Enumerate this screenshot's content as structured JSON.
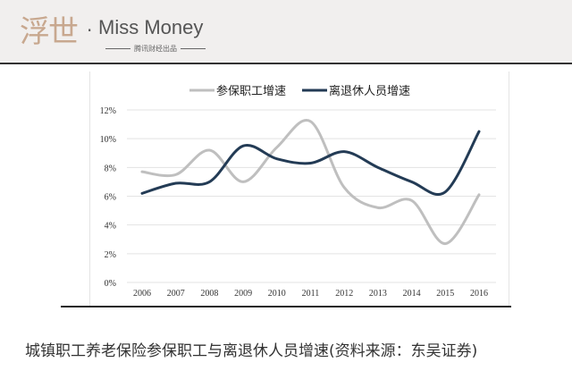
{
  "header": {
    "logo_cn": "浮世",
    "logo_en": "Miss Money",
    "logo_sub": "腾讯财经出品"
  },
  "caption": "城镇职工养老保险参保职工与离退休人员增速(资料来源：东吴证券)",
  "chart_data": {
    "type": "line",
    "categories": [
      "2006",
      "2007",
      "2008",
      "2009",
      "2010",
      "2011",
      "2012",
      "2013",
      "2014",
      "2015",
      "2016"
    ],
    "series": [
      {
        "name": "参保职工增速",
        "color": "#bfbfbf",
        "values": [
          7.7,
          7.5,
          9.2,
          7.0,
          9.4,
          11.2,
          6.6,
          5.2,
          5.7,
          2.7,
          6.1
        ]
      },
      {
        "name": "离退休人员增速",
        "color": "#233b55",
        "values": [
          6.2,
          6.9,
          7.0,
          9.5,
          8.6,
          8.3,
          9.1,
          8.0,
          7.0,
          6.3,
          10.5
        ]
      }
    ],
    "yticks": [
      "0%",
      "2%",
      "4%",
      "6%",
      "8%",
      "10%",
      "12%"
    ],
    "ylim": [
      0,
      12
    ],
    "grid": true,
    "legend": "top",
    "smooth": true
  }
}
